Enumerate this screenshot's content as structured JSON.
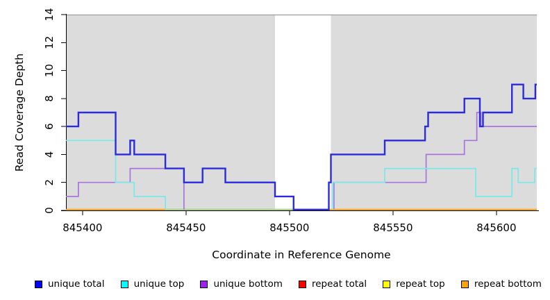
{
  "chart_data": {
    "type": "step-line",
    "title": "",
    "xlabel": "Coordinate in Reference Genome",
    "ylabel": "Read Coverage Depth",
    "x_range": [
      845392,
      845619.5
    ],
    "y_range": [
      0,
      14
    ],
    "x_ticks": [
      845400,
      845450,
      845500,
      845550,
      845600
    ],
    "y_ticks": [
      0,
      2,
      4,
      6,
      8,
      10,
      12,
      14
    ],
    "grid": "off",
    "plot_background": "#DCDCDC",
    "panel_top_edge_color": "#9C9C9C",
    "shaded_regions": [
      [
        845392,
        845493
      ],
      [
        845520,
        845619.5
      ]
    ],
    "masked_gap_region": {
      "from": 845493,
      "to": 845520
    },
    "series": [
      {
        "name": "unique total",
        "color": "#2A2ADF",
        "line_width": 2.4,
        "skip_zero": false,
        "x_end": 845619.5,
        "steps": [
          [
            845392,
            6
          ],
          [
            845398,
            7
          ],
          [
            845416,
            4
          ],
          [
            845423,
            5
          ],
          [
            845425,
            4
          ],
          [
            845440,
            3
          ],
          [
            845449,
            2
          ],
          [
            845458,
            3
          ],
          [
            845469,
            2
          ],
          [
            845493,
            1
          ],
          [
            845502,
            0
          ],
          [
            845519,
            2
          ],
          [
            845520,
            4
          ],
          [
            845546,
            5
          ],
          [
            845565.5,
            6
          ],
          [
            845567,
            7
          ],
          [
            845584.5,
            8
          ],
          [
            845592,
            6
          ],
          [
            845593.5,
            7
          ],
          [
            845607.5,
            9
          ],
          [
            845613,
            8
          ],
          [
            845618.8,
            9
          ]
        ]
      },
      {
        "name": "unique top",
        "color": "#79E8E8",
        "line_width": 1.7,
        "skip_zero": true,
        "x_end": 845619.5,
        "steps": [
          [
            845392,
            5
          ],
          [
            845416,
            2
          ],
          [
            845425,
            1
          ],
          [
            845440,
            0
          ],
          [
            845521,
            2
          ],
          [
            845546,
            3
          ],
          [
            845590,
            1
          ],
          [
            845607.5,
            3
          ],
          [
            845610.5,
            2
          ],
          [
            845618.5,
            3
          ]
        ]
      },
      {
        "name": "unique bottom",
        "color": "#A873DC",
        "line_width": 1.7,
        "skip_zero": true,
        "x_end": 845619.5,
        "steps": [
          [
            845392,
            1
          ],
          [
            845398,
            2
          ],
          [
            845423,
            3
          ],
          [
            845449,
            0
          ],
          [
            845521.5,
            2
          ],
          [
            845566,
            4
          ],
          [
            845584.5,
            5
          ],
          [
            845590.5,
            7
          ],
          [
            845592.5,
            6
          ]
        ]
      },
      {
        "name": "repeat total",
        "color": "#FF0000",
        "line_width": 1.6,
        "skip_zero": false,
        "x_end": 845619.5,
        "steps": [
          [
            845392,
            0
          ]
        ]
      },
      {
        "name": "repeat top",
        "color": "#FFFF00",
        "line_width": 1.6,
        "skip_zero": false,
        "x_end": 845619.5,
        "steps": [
          [
            845392,
            0
          ]
        ]
      },
      {
        "name": "repeat bottom",
        "color": "#FFA500",
        "line_width": 2.0,
        "skip_zero": false,
        "x_end": 845619.5,
        "steps": [
          [
            845392,
            0
          ]
        ]
      }
    ],
    "zero_overlap_segment": {
      "from": 845440,
      "to": 845502,
      "color": "#98DB98"
    },
    "legend": [
      {
        "label": "unique total",
        "color": "#0000FF"
      },
      {
        "label": "unique top",
        "color": "#00FFFF"
      },
      {
        "label": "unique bottom",
        "color": "#A020F0"
      },
      {
        "label": "repeat total",
        "color": "#FF0000"
      },
      {
        "label": "repeat top",
        "color": "#FFFF00"
      },
      {
        "label": "repeat bottom",
        "color": "#FFA500"
      }
    ]
  }
}
